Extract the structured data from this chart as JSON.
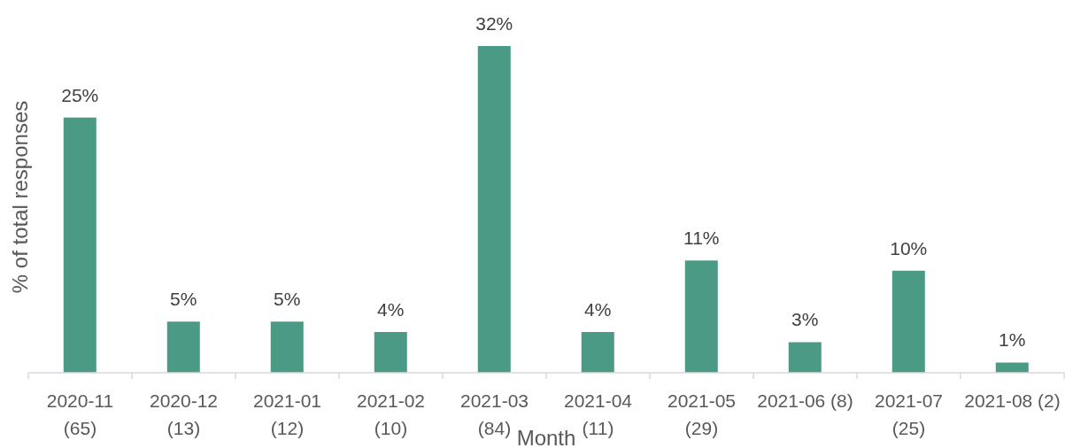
{
  "chart_data": {
    "type": "bar",
    "xlabel": "Month",
    "ylabel": "% of total responses",
    "categories": [
      "2020-11 (65)",
      "2020-12 (13)",
      "2021-01 (12)",
      "2021-02 (10)",
      "2021-03 (84)",
      "2021-04 (11)",
      "2021-05 (29)",
      "2021-06 (8)",
      "2021-07 (25)",
      "2021-08 (2)"
    ],
    "values": [
      25,
      5,
      5,
      4,
      32,
      4,
      11,
      3,
      10,
      1
    ],
    "value_labels": [
      "25%",
      "5%",
      "5%",
      "4%",
      "32%",
      "4%",
      "11%",
      "3%",
      "10%",
      "1%"
    ],
    "color": "#4a9a85"
  }
}
